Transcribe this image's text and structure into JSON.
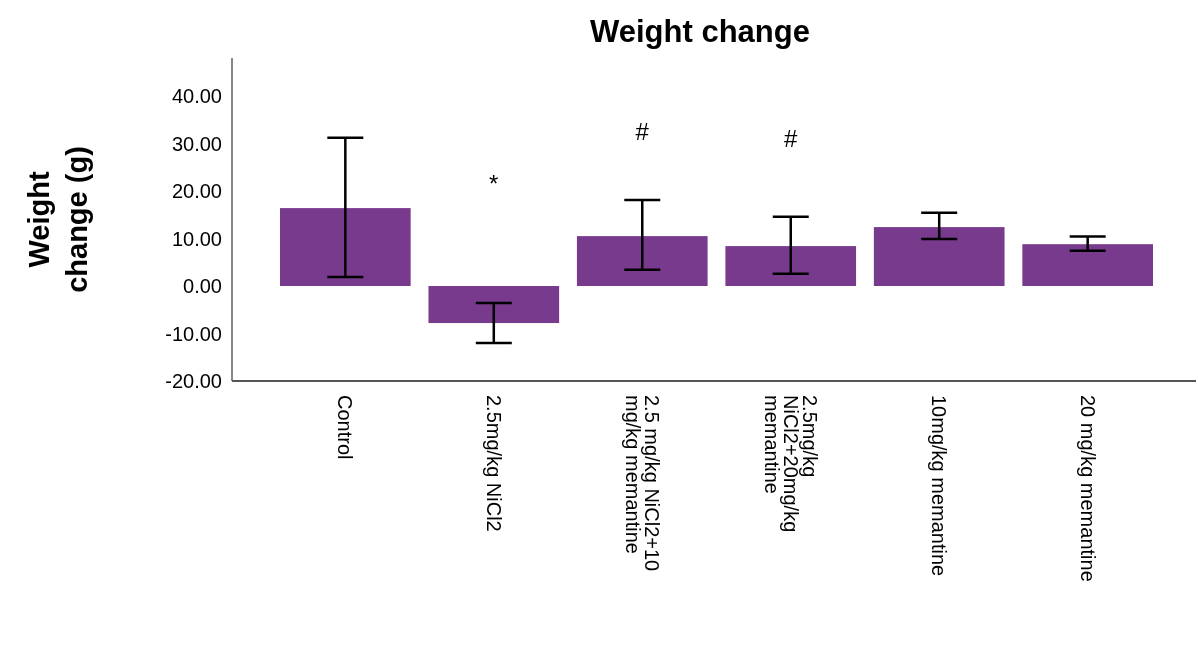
{
  "chart_data": {
    "type": "bar",
    "title": "Weight change",
    "ylabel": "Weight change (g)",
    "categories": [
      "Control",
      "2.5mg/kg NiCl2",
      "2.5 mg/kg NiCl2+10 mg/kg memantine",
      "2.5mg/kg NiCl2+20mg/kg memantine",
      "10mg/kg memantine",
      "20 mg/kg memantine"
    ],
    "values": [
      16.4,
      -7.8,
      10.5,
      8.4,
      12.4,
      8.8
    ],
    "errors": [
      [
        1.9,
        31.2
      ],
      [
        -12.0,
        -3.6
      ],
      [
        3.4,
        18.1
      ],
      [
        2.6,
        14.6
      ],
      [
        9.9,
        15.4
      ],
      [
        7.4,
        10.4
      ]
    ],
    "color": "#773a8c",
    "ylim": [
      -20,
      48
    ],
    "yticks": [
      {
        "value": -20,
        "label": "-20.00"
      },
      {
        "value": -10,
        "label": "-10.00"
      },
      {
        "value": 0,
        "label": "0.00"
      },
      {
        "value": 10,
        "label": "10.00"
      },
      {
        "value": 20,
        "label": "20.00"
      },
      {
        "value": 30,
        "label": "30.00"
      },
      {
        "value": 40,
        "label": "40.00"
      }
    ],
    "annotations": [
      "*",
      "#",
      "#"
    ],
    "grid": false
  }
}
